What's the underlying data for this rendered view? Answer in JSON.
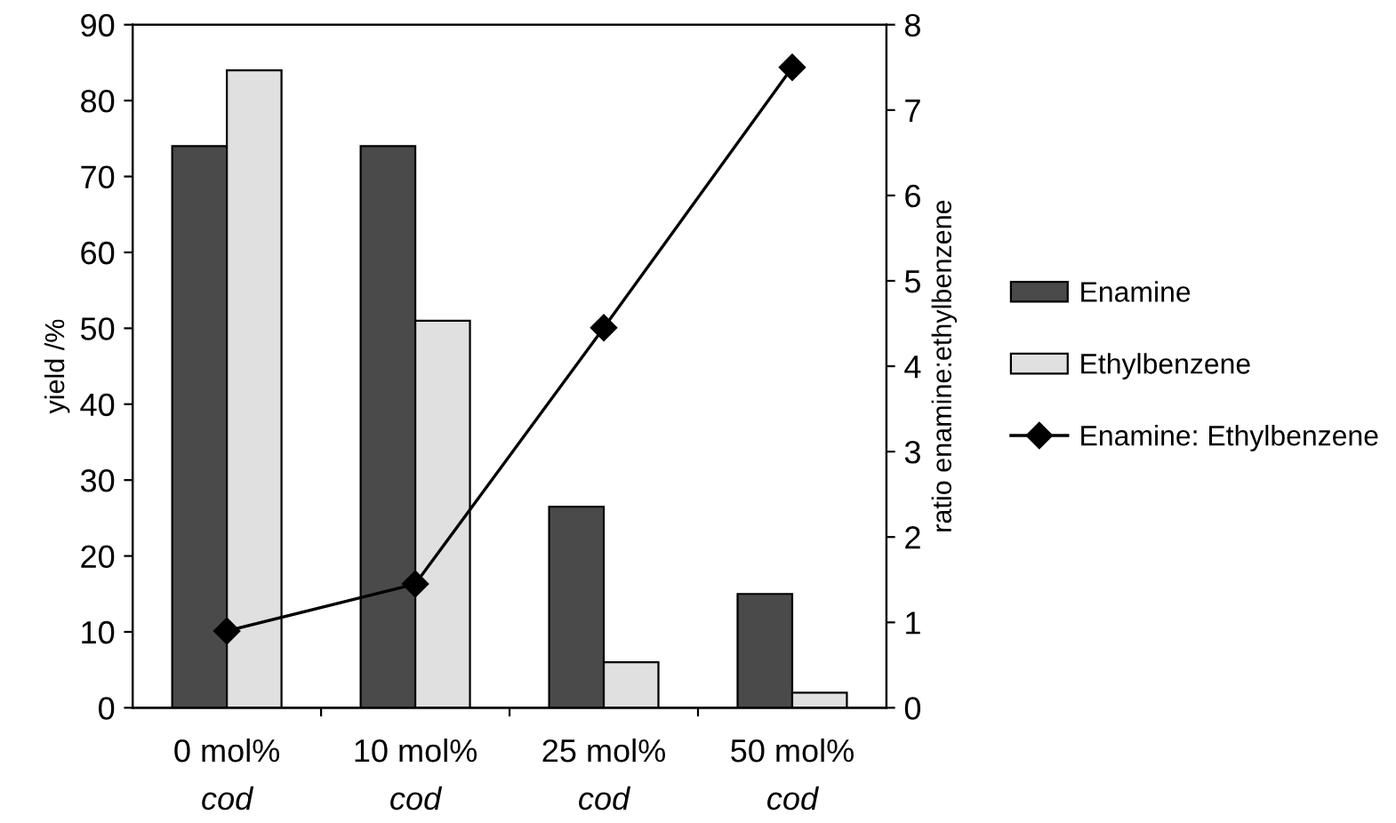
{
  "chart_data": {
    "type": "bar",
    "categories": [
      "0 mol%\ncod",
      "10 mol%\ncod",
      "25 mol%\ncod",
      "50 mol%\ncod"
    ],
    "ylabel": "yield /%",
    "y2label": "ratio enamine:ethylbenzene",
    "ylim": [
      0,
      90
    ],
    "yticks": [
      0,
      10,
      20,
      30,
      40,
      50,
      60,
      70,
      80,
      90
    ],
    "y2lim": [
      0,
      8
    ],
    "y2ticks": [
      0,
      1,
      2,
      3,
      4,
      5,
      6,
      7,
      8
    ],
    "legend": "right",
    "grid": false,
    "series": [
      {
        "name": "Enamine",
        "color": "#4a4a4a",
        "values": [
          74,
          74,
          26.5,
          15
        ]
      },
      {
        "name": "Ethylbenzene",
        "color": "#e0e0e0",
        "values": [
          84,
          51,
          6,
          2
        ]
      },
      {
        "name": "Enamine: Ethylbenzene",
        "type": "line",
        "axis": "y2",
        "color": "#000000",
        "marker": "diamond",
        "values": [
          0.9,
          1.45,
          4.45,
          7.5
        ]
      }
    ]
  }
}
